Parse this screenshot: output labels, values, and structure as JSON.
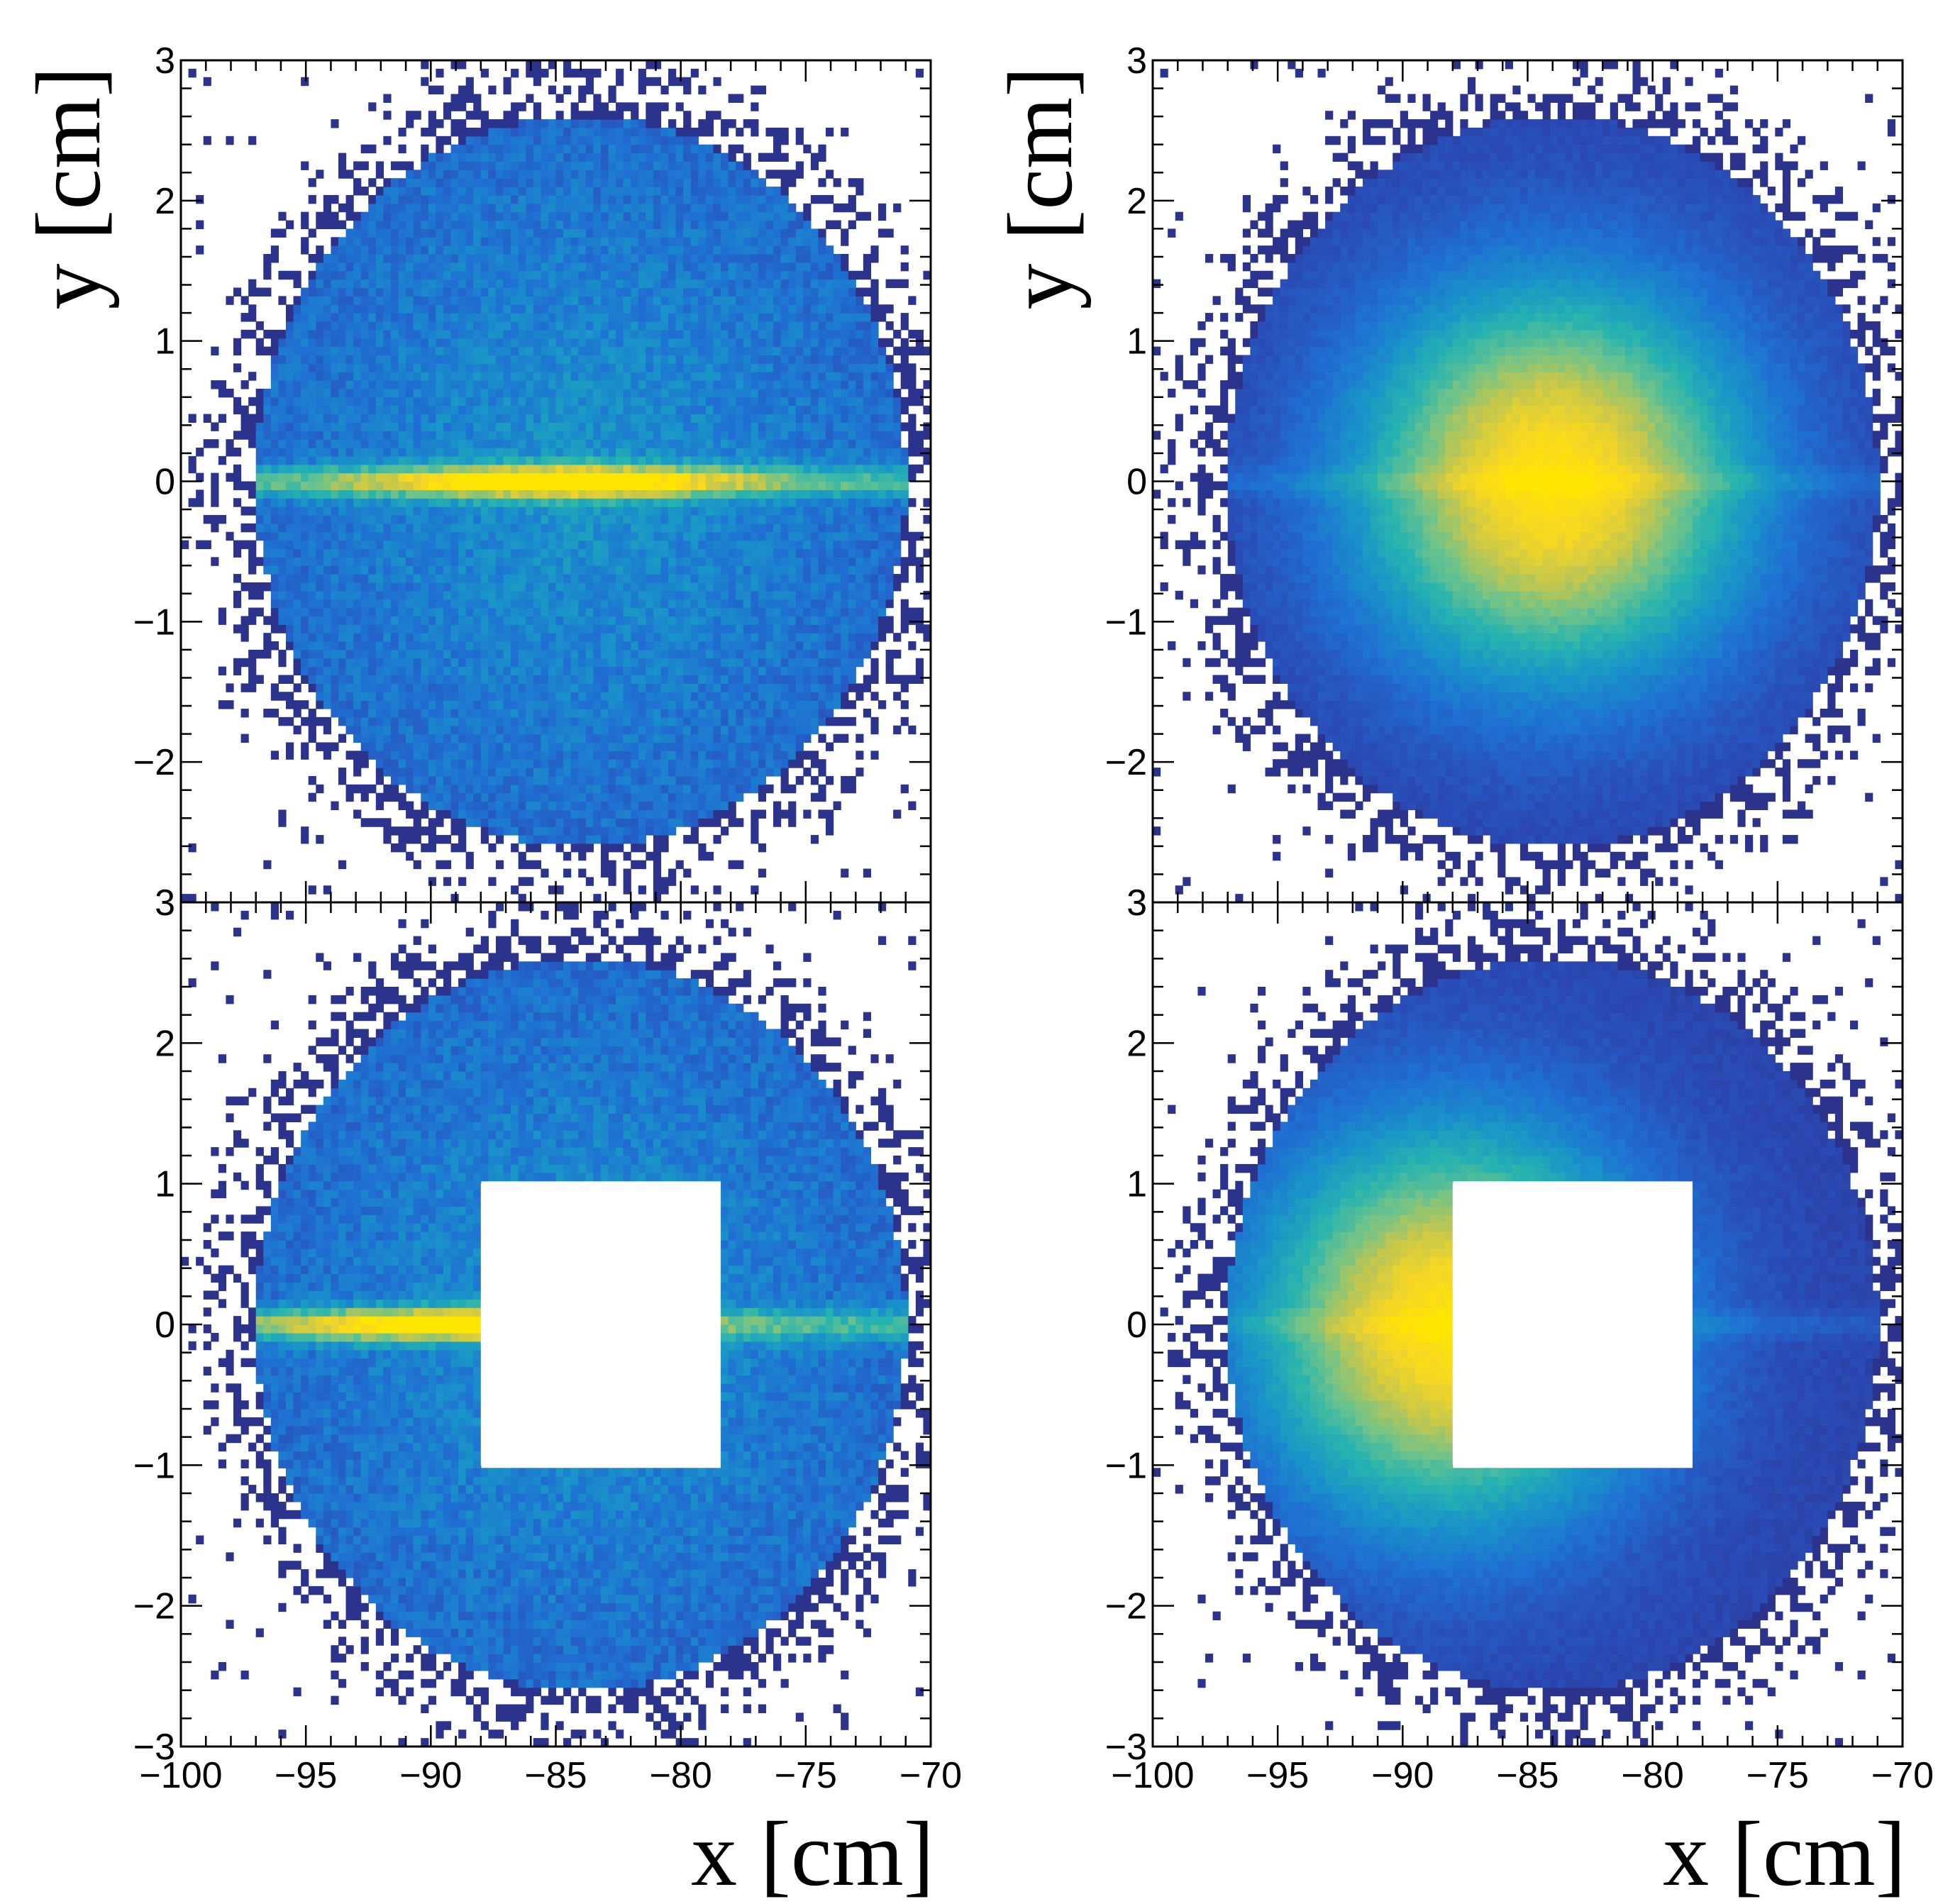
{
  "chart_data": [
    {
      "type": "heatmap",
      "panel": "top-left",
      "hole": null,
      "profile": "horizontal-band",
      "xlabel": "",
      "ylabel": "y [cm]",
      "xlim": [
        -100,
        -70
      ],
      "ylim": [
        -3,
        3
      ],
      "disk": {
        "center_x": -84,
        "center_y": 0,
        "radius_x": 13,
        "radius_y": 2.6
      },
      "peak": {
        "x": -85,
        "y": 0
      },
      "yticks": [
        "3",
        "2",
        "1",
        "0",
        "−1",
        "−2"
      ],
      "ytick_values": [
        3,
        2,
        1,
        0,
        -1,
        -2
      ],
      "show_xtick_labels": false
    },
    {
      "type": "heatmap",
      "panel": "top-right",
      "hole": null,
      "profile": "central-peak",
      "xlabel": "",
      "ylabel": "y [cm]",
      "xlim": [
        -100,
        -70
      ],
      "ylim": [
        -3,
        3
      ],
      "disk": {
        "center_x": -84,
        "center_y": 0,
        "radius_x": 13,
        "radius_y": 2.6
      },
      "peak": {
        "x": -84,
        "y": 0
      },
      "yticks": [
        "3",
        "2",
        "1",
        "0",
        "−1",
        "−2"
      ],
      "ytick_values": [
        3,
        2,
        1,
        0,
        -1,
        -2
      ],
      "show_xtick_labels": false
    },
    {
      "type": "heatmap",
      "panel": "bottom-left",
      "hole": {
        "x_min": -88,
        "x_max": -78.5,
        "y_min": -1,
        "y_max": 1
      },
      "profile": "horizontal-band",
      "xlabel": "x [cm]",
      "ylabel": "",
      "xlim": [
        -100,
        -70
      ],
      "ylim": [
        -3,
        3
      ],
      "disk": {
        "center_x": -84,
        "center_y": 0,
        "radius_x": 13,
        "radius_y": 2.6
      },
      "peak": {
        "x": -89,
        "y": 0
      },
      "yticks": [
        "3",
        "2",
        "1",
        "0",
        "−1",
        "−2",
        "−3"
      ],
      "ytick_values": [
        3,
        2,
        1,
        0,
        -1,
        -2,
        -3
      ],
      "xticks": [
        "−100",
        "−95",
        "−90",
        "−85",
        "−80",
        "−75",
        "−70"
      ],
      "xtick_values": [
        -100,
        -95,
        -90,
        -85,
        -80,
        -75,
        -70
      ],
      "show_xtick_labels": true
    },
    {
      "type": "heatmap",
      "panel": "bottom-right",
      "hole": {
        "x_min": -88,
        "x_max": -78.5,
        "y_min": -1,
        "y_max": 1
      },
      "profile": "central-peak",
      "xlabel": "x [cm]",
      "ylabel": "",
      "xlim": [
        -100,
        -70
      ],
      "ylim": [
        -3,
        3
      ],
      "disk": {
        "center_x": -84,
        "center_y": 0,
        "radius_x": 13,
        "radius_y": 2.6
      },
      "peak": {
        "x": -88,
        "y": 0
      },
      "yticks": [
        "3",
        "2",
        "1",
        "0",
        "−1",
        "−2",
        "−3"
      ],
      "ytick_values": [
        3,
        2,
        1,
        0,
        -1,
        -2,
        -3
      ],
      "xticks": [
        "−100",
        "−95",
        "−90",
        "−85",
        "−80",
        "−75",
        "−70"
      ],
      "xtick_values": [
        -100,
        -95,
        -90,
        -85,
        -80,
        -75,
        -70
      ],
      "show_xtick_labels": true
    }
  ],
  "colors": {
    "colormap": [
      "#2b2f86",
      "#2a4ab4",
      "#1f6fd2",
      "#1994c9",
      "#26b3b0",
      "#6dc38b",
      "#c2c74e",
      "#f5d625",
      "#ffe600"
    ],
    "hole_fill": "#ffffff",
    "background": "#ffffff",
    "axis": "#000000"
  }
}
